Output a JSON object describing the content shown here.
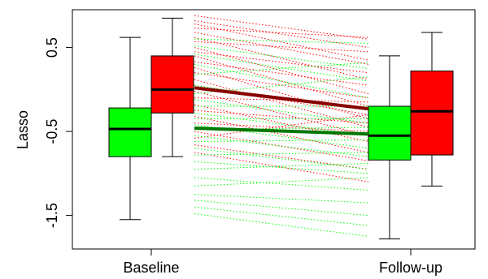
{
  "chart_data": {
    "type": "box",
    "title": "",
    "xlabel": "",
    "ylabel": "Lasso",
    "categories": [
      "Baseline",
      "Follow-up"
    ],
    "yticks": [
      0.5,
      -0.5,
      -1.5
    ],
    "ytick_labels": [
      "0.5",
      "-0.5",
      "-1.5"
    ],
    "ylim": [
      -1.9,
      0.95
    ],
    "grid": false,
    "legend": "none",
    "colors": {
      "green": "#00ff00",
      "red": "#ff0000",
      "dark_green": "#007700",
      "dark_red": "#880000"
    },
    "boxes": [
      {
        "category": "Baseline",
        "group": "green",
        "whisker_low": -1.55,
        "q1": -0.8,
        "median": -0.47,
        "q3": -0.22,
        "whisker_high": 0.62
      },
      {
        "category": "Baseline",
        "group": "red",
        "whisker_low": -0.8,
        "q1": -0.28,
        "median": 0.0,
        "q3": 0.4,
        "whisker_high": 0.85
      },
      {
        "category": "Follow-up",
        "group": "green",
        "whisker_low": -1.78,
        "q1": -0.84,
        "median": -0.55,
        "q3": -0.2,
        "whisker_high": 0.4
      },
      {
        "category": "Follow-up",
        "group": "red",
        "whisker_low": -1.15,
        "q1": -0.78,
        "median": -0.26,
        "q3": 0.22,
        "whisker_high": 0.68
      }
    ],
    "mean_lines": [
      {
        "group": "red",
        "from": 0.02,
        "to": -0.23
      },
      {
        "group": "green",
        "from": -0.46,
        "to": -0.53
      }
    ],
    "subject_lines": [
      {
        "group": "red",
        "from": 0.88,
        "to": 0.6
      },
      {
        "group": "red",
        "from": 0.82,
        "to": 0.5
      },
      {
        "group": "red",
        "from": 0.78,
        "to": 0.35
      },
      {
        "group": "red",
        "from": 0.73,
        "to": 0.62
      },
      {
        "group": "red",
        "from": 0.68,
        "to": 0.3
      },
      {
        "group": "red",
        "from": 0.62,
        "to": 0.12
      },
      {
        "group": "red",
        "from": 0.57,
        "to": 0.45
      },
      {
        "group": "red",
        "from": 0.5,
        "to": -0.05
      },
      {
        "group": "red",
        "from": 0.45,
        "to": 0.2
      },
      {
        "group": "red",
        "from": 0.4,
        "to": -0.2
      },
      {
        "group": "red",
        "from": 0.33,
        "to": 0.05
      },
      {
        "group": "red",
        "from": 0.26,
        "to": -0.35
      },
      {
        "group": "red",
        "from": 0.2,
        "to": -0.1
      },
      {
        "group": "red",
        "from": 0.12,
        "to": -0.45
      },
      {
        "group": "red",
        "from": 0.05,
        "to": -0.3
      },
      {
        "group": "red",
        "from": -0.02,
        "to": -0.55
      },
      {
        "group": "red",
        "from": -0.1,
        "to": -0.15
      },
      {
        "group": "red",
        "from": -0.18,
        "to": -0.62
      },
      {
        "group": "red",
        "from": -0.25,
        "to": -0.4
      },
      {
        "group": "red",
        "from": -0.32,
        "to": -0.75
      },
      {
        "group": "red",
        "from": -0.4,
        "to": -0.5
      },
      {
        "group": "red",
        "from": -0.5,
        "to": -0.85
      },
      {
        "group": "red",
        "from": -0.58,
        "to": -0.3
      },
      {
        "group": "red",
        "from": -0.66,
        "to": -0.95
      },
      {
        "group": "red",
        "from": -0.75,
        "to": -1.1
      },
      {
        "group": "green",
        "from": 0.6,
        "to": 0.55
      },
      {
        "group": "green",
        "from": 0.52,
        "to": 0.25
      },
      {
        "group": "green",
        "from": 0.42,
        "to": 0.1
      },
      {
        "group": "green",
        "from": 0.3,
        "to": -0.1
      },
      {
        "group": "green",
        "from": 0.18,
        "to": 0.32
      },
      {
        "group": "green",
        "from": 0.05,
        "to": -0.25
      },
      {
        "group": "green",
        "from": -0.05,
        "to": 0.15
      },
      {
        "group": "green",
        "from": -0.12,
        "to": -0.4
      },
      {
        "group": "green",
        "from": -0.2,
        "to": -0.2
      },
      {
        "group": "green",
        "from": -0.28,
        "to": -0.55
      },
      {
        "group": "green",
        "from": -0.35,
        "to": -0.35
      },
      {
        "group": "green",
        "from": -0.42,
        "to": -0.7
      },
      {
        "group": "green",
        "from": -0.48,
        "to": -0.45
      },
      {
        "group": "green",
        "from": -0.55,
        "to": -0.8
      },
      {
        "group": "green",
        "from": -0.62,
        "to": -0.6
      },
      {
        "group": "green",
        "from": -0.7,
        "to": -0.95
      },
      {
        "group": "green",
        "from": -0.78,
        "to": -0.75
      },
      {
        "group": "green",
        "from": -0.86,
        "to": -1.0
      },
      {
        "group": "green",
        "from": -0.95,
        "to": -0.88
      },
      {
        "group": "green",
        "from": -1.05,
        "to": -1.2
      },
      {
        "group": "green",
        "from": -1.15,
        "to": -1.05
      },
      {
        "group": "green",
        "from": -1.25,
        "to": -1.35
      },
      {
        "group": "green",
        "from": -1.32,
        "to": -1.5
      },
      {
        "group": "green",
        "from": -1.4,
        "to": -1.62
      },
      {
        "group": "green",
        "from": -1.48,
        "to": -1.75
      }
    ]
  }
}
